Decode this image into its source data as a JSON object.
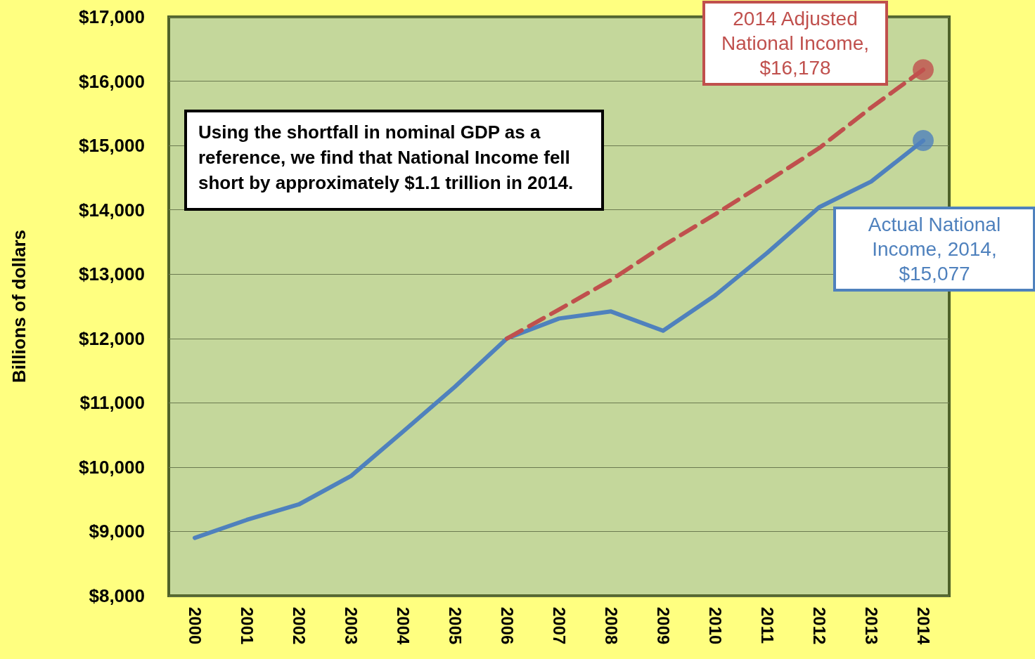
{
  "chart_data": {
    "type": "line",
    "ylabel": "Billions of dollars",
    "categories": [
      "2000",
      "2001",
      "2002",
      "2003",
      "2004",
      "2005",
      "2006",
      "2007",
      "2008",
      "2009",
      "2010",
      "2011",
      "2012",
      "2013",
      "2014"
    ],
    "series": [
      {
        "color": "#4f81bd",
        "line_style": "solid",
        "marker": "none",
        "values": [
          8900,
          9180,
          9420,
          9860,
          10550,
          11250,
          12000,
          12310,
          12420,
          12120,
          12670,
          13330,
          14040,
          14440,
          15077
        ]
      },
      {
        "color": "#c0504d",
        "line_style": "dashed",
        "marker": "none",
        "values": [
          null,
          null,
          null,
          null,
          null,
          null,
          12000,
          12450,
          12910,
          13440,
          13930,
          14440,
          14960,
          15590,
          16178
        ]
      },
      {
        "type": "scatter",
        "color": "#c0504d",
        "marker": "circle",
        "values": [
          null,
          null,
          null,
          null,
          null,
          null,
          null,
          null,
          null,
          null,
          null,
          null,
          null,
          null,
          16178
        ]
      },
      {
        "type": "scatter",
        "color": "#4f81bd",
        "marker": "circle",
        "values": [
          null,
          null,
          null,
          null,
          null,
          null,
          null,
          null,
          null,
          null,
          null,
          null,
          null,
          null,
          15077
        ]
      }
    ],
    "ylim": [
      8000,
      17000
    ],
    "yticks": [
      {
        "value": 8000,
        "label": "$8,000"
      },
      {
        "value": 9000,
        "label": "$9,000"
      },
      {
        "value": 10000,
        "label": "$10,000"
      },
      {
        "value": 11000,
        "label": "$11,000"
      },
      {
        "value": 12000,
        "label": "$12,000"
      },
      {
        "value": 13000,
        "label": "$13,000"
      },
      {
        "value": 14000,
        "label": "$14,000"
      },
      {
        "value": 15000,
        "label": "$15,000"
      },
      {
        "value": 16000,
        "label": "$16,000"
      },
      {
        "value": 17000,
        "label": "$17,000"
      }
    ],
    "grid": "y",
    "annotations": [
      "Using the shortfall in nominal GDP as a reference, we find that National Income fell short by approximately $1.1 trillion in 2014.",
      "2014 Adjusted National Income, $16,178",
      "Actual National Income, 2014, $15,077"
    ]
  }
}
